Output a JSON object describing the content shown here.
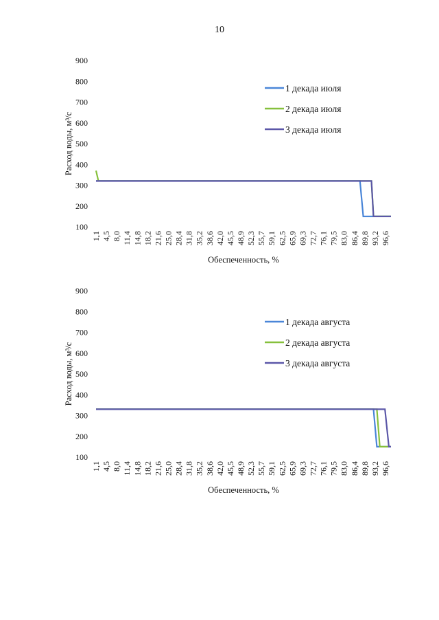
{
  "page_number": "10",
  "chart_data": [
    {
      "type": "line",
      "xlabel": "Обеспеченность, %",
      "ylabel": "Расход воды, м³/с",
      "ylim": [
        100,
        900
      ],
      "yticks": [
        100,
        200,
        300,
        400,
        500,
        600,
        700,
        800,
        900
      ],
      "x_tick_labels": [
        "1,1",
        "4,5",
        "8,0",
        "11,4",
        "14,8",
        "18,2",
        "21,6",
        "25,0",
        "28,4",
        "31,8",
        "35,2",
        "38,6",
        "42,0",
        "45,5",
        "48,9",
        "52,3",
        "55,7",
        "59,1",
        "62,5",
        "65,9",
        "69,3",
        "72,7",
        "76,1",
        "79,5",
        "83,0",
        "86,4",
        "89,8",
        "93,2",
        "96,6"
      ],
      "xlim": [
        1.1,
        99.0
      ],
      "legend_position": "right",
      "grid": false,
      "series": [
        {
          "name": "1 декада июля",
          "color": "#4a86d8",
          "points": [
            [
              1.1,
              320
            ],
            [
              88.7,
              320
            ],
            [
              89.8,
              150
            ],
            [
              99.0,
              150
            ]
          ]
        },
        {
          "name": "2 декада июля",
          "color": "#86c03c",
          "points": [
            [
              1.1,
              370
            ],
            [
              1.9,
              320
            ],
            [
              92.5,
              320
            ],
            [
              93.2,
              150
            ],
            [
              99.0,
              150
            ]
          ]
        },
        {
          "name": "3 декада июля",
          "color": "#5b57a8",
          "points": [
            [
              1.1,
              320
            ],
            [
              92.5,
              320
            ],
            [
              93.2,
              150
            ],
            [
              99.0,
              150
            ]
          ]
        }
      ]
    },
    {
      "type": "line",
      "xlabel": "Обеспеченность, %",
      "ylabel": "Расход воды, м³/с",
      "ylim": [
        100,
        900
      ],
      "yticks": [
        100,
        200,
        300,
        400,
        500,
        600,
        700,
        800,
        900
      ],
      "x_tick_labels": [
        "1,1",
        "4,5",
        "8,0",
        "11,4",
        "14,8",
        "18,2",
        "21,6",
        "25,0",
        "28,4",
        "31,8",
        "35,2",
        "38,6",
        "42,0",
        "45,5",
        "48,9",
        "52,3",
        "55,7",
        "59,1",
        "62,5",
        "65,9",
        "69,3",
        "72,7",
        "76,1",
        "79,5",
        "83,0",
        "86,4",
        "89,8",
        "93,2",
        "96,6"
      ],
      "xlim": [
        1.1,
        99.0
      ],
      "legend_position": "right",
      "grid": false,
      "series": [
        {
          "name": "1 декада августа",
          "color": "#4a86d8",
          "points": [
            [
              1.1,
              330
            ],
            [
              93.2,
              330
            ],
            [
              94.3,
              150
            ],
            [
              99.0,
              150
            ]
          ]
        },
        {
          "name": "2 декада августа",
          "color": "#86c03c",
          "points": [
            [
              1.1,
              330
            ],
            [
              94.3,
              330
            ],
            [
              95.3,
              150
            ],
            [
              99.0,
              150
            ]
          ]
        },
        {
          "name": "3 декада августа",
          "color": "#5b57a8",
          "points": [
            [
              1.1,
              330
            ],
            [
              97.0,
              330
            ],
            [
              98.3,
              150
            ],
            [
              99.0,
              150
            ]
          ]
        }
      ]
    }
  ]
}
